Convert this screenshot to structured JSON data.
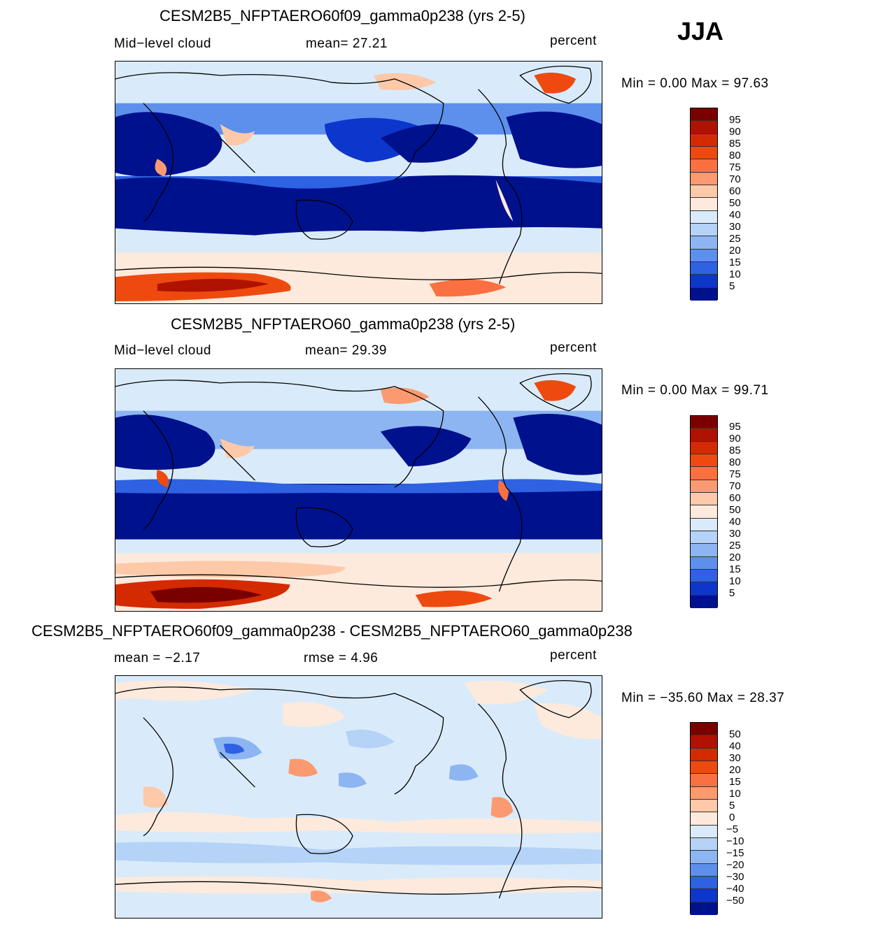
{
  "season": "JJA",
  "panels": [
    {
      "title": "CESM2B5_NFPTAERO60f09_gamma0p238 (yrs 2-5)",
      "left_label": "Mid−level cloud",
      "center_label": "mean=   27.21",
      "units": "percent",
      "minmax": "Min =    0.00 Max =   97.63",
      "levels": [
        "95",
        "90",
        "85",
        "80",
        "75",
        "70",
        "60",
        "50",
        "40",
        "30",
        "25",
        "20",
        "15",
        "10",
        "5"
      ]
    },
    {
      "title": "CESM2B5_NFPTAERO60_gamma0p238 (yrs 2-5)",
      "left_label": "Mid−level cloud",
      "center_label": "mean=   29.39",
      "units": "percent",
      "minmax": "Min =    0.00 Max =   99.71",
      "levels": [
        "95",
        "90",
        "85",
        "80",
        "75",
        "70",
        "60",
        "50",
        "40",
        "30",
        "25",
        "20",
        "15",
        "10",
        "5"
      ]
    },
    {
      "title": "CESM2B5_NFPTAERO60f09_gamma0p238 - CESM2B5_NFPTAERO60_gamma0p238",
      "left_label": "mean =   −2.17",
      "center_label": "rmse =     4.96",
      "units": "percent",
      "minmax": "Min = −35.60 Max =   28.37",
      "levels": [
        "50",
        "40",
        "30",
        "20",
        "15",
        "10",
        "5",
        "0",
        "−5",
        "−10",
        "−15",
        "−20",
        "−30",
        "−40",
        "−50"
      ]
    }
  ],
  "colors": {
    "scale": [
      "#7a0000",
      "#b01200",
      "#d42a00",
      "#ee4a10",
      "#fa7040",
      "#fb9a70",
      "#fdc9a8",
      "#fdeadc",
      "#d9ebfa",
      "#b5d2f7",
      "#8cb5f2",
      "#5d90ec",
      "#2e62e2",
      "#0d36cc",
      "#00118e"
    ]
  }
}
